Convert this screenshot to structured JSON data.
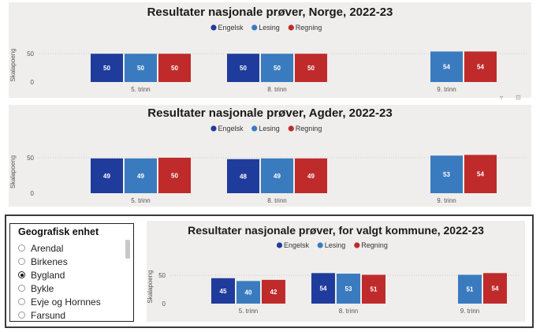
{
  "colors": {
    "Engelsk": "#1f3c9c",
    "Lesing": "#3a7bbf",
    "Regning": "#bf2b2b",
    "panel_bg": "#efeeec"
  },
  "legend": [
    "Engelsk",
    "Lesing",
    "Regning"
  ],
  "chart_data": [
    {
      "type": "bar",
      "title": "Resultater nasjonale prøver, Norge, 2022-23",
      "ylabel": "Skalapoeng",
      "ylim": [
        0,
        60
      ],
      "yticks": [
        0,
        50
      ],
      "grid": true,
      "legend_position": "top-center",
      "categories": [
        "5. trinn",
        "8. trinn",
        "9. trinn"
      ],
      "series": [
        {
          "name": "Engelsk",
          "values": [
            50,
            50,
            null
          ]
        },
        {
          "name": "Lesing",
          "values": [
            50,
            50,
            54
          ]
        },
        {
          "name": "Regning",
          "values": [
            50,
            50,
            54
          ]
        }
      ]
    },
    {
      "type": "bar",
      "title": "Resultater nasjonale prøver, Agder, 2022-23",
      "ylabel": "Skalapoeng",
      "ylim": [
        0,
        60
      ],
      "yticks": [
        0,
        50
      ],
      "grid": true,
      "legend_position": "top-center",
      "categories": [
        "5. trinn",
        "8. trinn",
        "9. trinn"
      ],
      "series": [
        {
          "name": "Engelsk",
          "values": [
            49,
            48,
            null
          ]
        },
        {
          "name": "Lesing",
          "values": [
            49,
            49,
            53
          ]
        },
        {
          "name": "Regning",
          "values": [
            50,
            49,
            54
          ]
        }
      ]
    },
    {
      "type": "bar",
      "title": "Resultater nasjonale prøver, for valgt kommune, 2022-23",
      "ylabel": "Skalapoeng",
      "ylim": [
        0,
        60
      ],
      "yticks": [
        0,
        50
      ],
      "grid": true,
      "legend_position": "top-center",
      "categories": [
        "5. trinn",
        "8. trinn",
        "9. trinn"
      ],
      "series": [
        {
          "name": "Engelsk",
          "values": [
            45,
            54,
            null
          ]
        },
        {
          "name": "Lesing",
          "values": [
            40,
            53,
            51
          ]
        },
        {
          "name": "Regning",
          "values": [
            42,
            51,
            54
          ]
        }
      ]
    }
  ],
  "slicer": {
    "title": "Geografisk enhet",
    "items": [
      {
        "label": "Arendal",
        "selected": false
      },
      {
        "label": "Birkenes",
        "selected": false
      },
      {
        "label": "Bygland",
        "selected": true
      },
      {
        "label": "Bykle",
        "selected": false
      },
      {
        "label": "Evje og Hornnes",
        "selected": false
      },
      {
        "label": "Farsund",
        "selected": false
      }
    ]
  },
  "visual_header_icons": [
    "filter-icon",
    "focus-mode-icon"
  ]
}
